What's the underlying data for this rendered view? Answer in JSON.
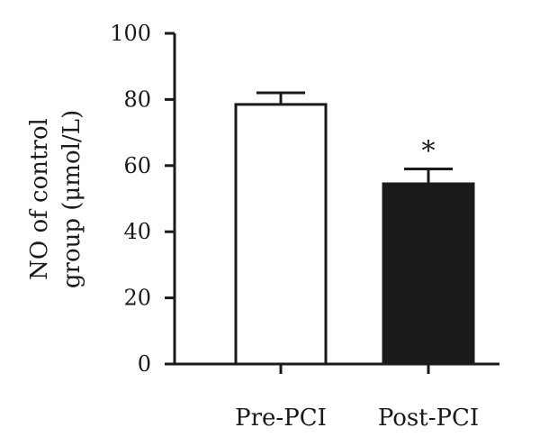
{
  "chart_data": {
    "type": "bar",
    "categories": [
      "Pre-PCI",
      "Post-PCI"
    ],
    "values": [
      78.5,
      54.5
    ],
    "error": [
      3.5,
      4.5
    ],
    "bar_fill": [
      "#ffffff",
      "#1a1a1a"
    ],
    "bar_stroke": "#1a1a1a",
    "significance": [
      "",
      "*"
    ],
    "ylabel_lines": [
      "NO of control",
      "group (μmol/L)"
    ],
    "xlabel": "",
    "ylim": [
      0,
      100
    ],
    "yticks": [
      0,
      20,
      40,
      60,
      80,
      100
    ],
    "grid": false,
    "legend": "none"
  }
}
